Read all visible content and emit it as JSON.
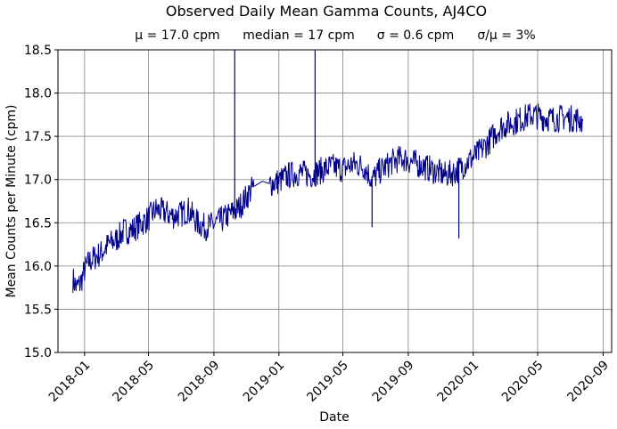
{
  "chart_data": {
    "type": "line",
    "title": "Observed Daily Mean Gamma Counts, AJ4CO",
    "subtitle": {
      "mean": "μ = 17.0 cpm",
      "median": "median = 17 cpm",
      "sigma": "σ = 0.6 cpm",
      "ratio": "σ/μ = 3%"
    },
    "xlabel": "Date",
    "ylabel": "Mean Counts per Minute (cpm)",
    "xlim": [
      "2017-11-12",
      "2020-09-17"
    ],
    "ylim": [
      15.0,
      18.5
    ],
    "grid": true,
    "line_color": "#00008b",
    "x_ticks": [
      {
        "date": "2018-01-01",
        "label": "2018-01"
      },
      {
        "date": "2018-05-01",
        "label": "2018-05"
      },
      {
        "date": "2018-09-01",
        "label": "2018-09"
      },
      {
        "date": "2019-01-01",
        "label": "2019-01"
      },
      {
        "date": "2019-05-01",
        "label": "2019-05"
      },
      {
        "date": "2019-09-01",
        "label": "2019-09"
      },
      {
        "date": "2020-01-01",
        "label": "2020-01"
      },
      {
        "date": "2020-05-01",
        "label": "2020-05"
      },
      {
        "date": "2020-09-01",
        "label": "2020-09"
      }
    ],
    "y_ticks": [
      {
        "value": 15.0,
        "label": "15.0"
      },
      {
        "value": 15.5,
        "label": "15.5"
      },
      {
        "value": 16.0,
        "label": "16.0"
      },
      {
        "value": 16.5,
        "label": "16.5"
      },
      {
        "value": 17.0,
        "label": "17.0"
      },
      {
        "value": 17.5,
        "label": "17.5"
      },
      {
        "value": 18.0,
        "label": "18.0"
      },
      {
        "value": 18.5,
        "label": "18.5"
      }
    ],
    "series": [
      {
        "values": [
          [
            "2017-12-10",
            15.85
          ],
          [
            "2017-12-17",
            15.75
          ],
          [
            "2017-12-24",
            15.8
          ],
          [
            "2018-01-01",
            15.95
          ],
          [
            "2018-01-10",
            16.05
          ],
          [
            "2018-01-20",
            16.1
          ],
          [
            "2018-02-01",
            16.15
          ],
          [
            "2018-02-15",
            16.25
          ],
          [
            "2018-03-01",
            16.3
          ],
          [
            "2018-03-15",
            16.4
          ],
          [
            "2018-04-01",
            16.42
          ],
          [
            "2018-04-15",
            16.48
          ],
          [
            "2018-05-01",
            16.55
          ],
          [
            "2018-05-15",
            16.65
          ],
          [
            "2018-06-01",
            16.62
          ],
          [
            "2018-06-15",
            16.58
          ],
          [
            "2018-07-01",
            16.6
          ],
          [
            "2018-07-15",
            16.65
          ],
          [
            "2018-08-01",
            16.5
          ],
          [
            "2018-08-15",
            16.45
          ],
          [
            "2018-09-01",
            16.48
          ],
          [
            "2018-09-20",
            16.55
          ],
          [
            "2018-10-01",
            16.6
          ],
          [
            "2018-10-15",
            16.65
          ],
          [
            "2018-11-01",
            16.8
          ],
          [
            "2018-11-15",
            16.92
          ],
          [
            "2018-12-01",
            16.98
          ],
          [
            "2018-12-15",
            16.95
          ],
          [
            "2019-01-01",
            16.98
          ],
          [
            "2019-01-20",
            17.05
          ],
          [
            "2019-02-10",
            17.08
          ],
          [
            "2019-03-01",
            17.05
          ],
          [
            "2019-03-20",
            17.1
          ],
          [
            "2019-04-10",
            17.15
          ],
          [
            "2019-05-01",
            17.12
          ],
          [
            "2019-05-20",
            17.18
          ],
          [
            "2019-06-10",
            17.15
          ],
          [
            "2019-06-25",
            17.0
          ],
          [
            "2019-07-10",
            17.1
          ],
          [
            "2019-08-01",
            17.2
          ],
          [
            "2019-08-20",
            17.25
          ],
          [
            "2019-09-10",
            17.2
          ],
          [
            "2019-10-01",
            17.15
          ],
          [
            "2019-10-20",
            17.1
          ],
          [
            "2019-11-10",
            17.05
          ],
          [
            "2019-12-01",
            17.1
          ],
          [
            "2019-12-20",
            17.2
          ],
          [
            "2020-01-10",
            17.3
          ],
          [
            "2020-02-01",
            17.45
          ],
          [
            "2020-02-20",
            17.6
          ],
          [
            "2020-03-10",
            17.65
          ],
          [
            "2020-04-01",
            17.7
          ],
          [
            "2020-04-20",
            17.75
          ],
          [
            "2020-05-10",
            17.72
          ],
          [
            "2020-06-01",
            17.7
          ],
          [
            "2020-06-20",
            17.72
          ],
          [
            "2020-07-10",
            17.7
          ],
          [
            "2020-07-25",
            17.68
          ]
        ]
      }
    ],
    "spikes": [
      {
        "date": "2018-10-10",
        "value": 18.5
      },
      {
        "date": "2019-03-10",
        "value": 18.5
      },
      {
        "date": "2019-06-25",
        "value": 16.45
      },
      {
        "date": "2019-12-05",
        "value": 16.32
      }
    ]
  }
}
